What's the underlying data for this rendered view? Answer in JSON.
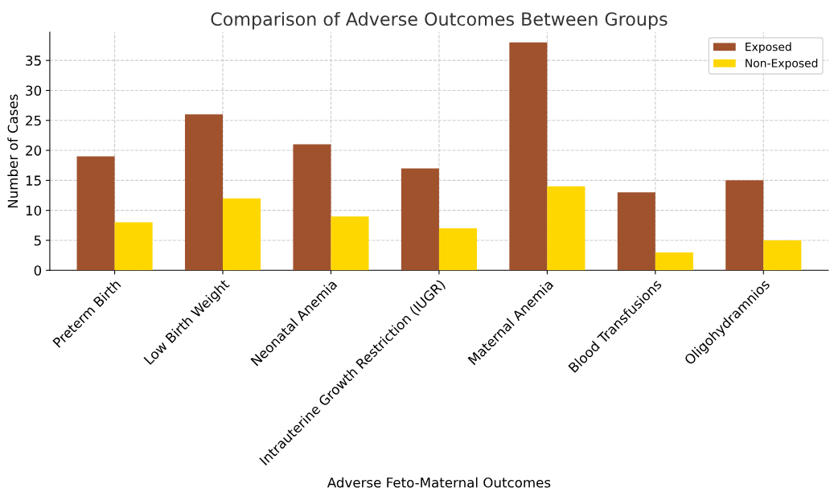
{
  "chart_data": {
    "type": "bar",
    "title": "Comparison of Adverse Outcomes Between Groups",
    "xlabel": "Adverse Feto-Maternal Outcomes",
    "ylabel": "Number of Cases",
    "categories": [
      "Preterm Birth",
      "Low Birth Weight",
      "Neonatal Anemia",
      "Intrauterine Growth Restriction (IUGR)",
      "Maternal Anemia",
      "Blood Transfusions",
      "Oligohydramnios"
    ],
    "series": [
      {
        "name": "Exposed",
        "color": "#a0522d",
        "values": [
          19,
          26,
          21,
          17,
          38,
          13,
          15
        ]
      },
      {
        "name": "Non-Exposed",
        "color": "#ffd700",
        "values": [
          8,
          12,
          9,
          7,
          14,
          3,
          5
        ]
      }
    ],
    "ylim": [
      0,
      39.7
    ],
    "yticks": [
      0,
      5,
      10,
      15,
      20,
      25,
      30,
      35
    ],
    "grid": true,
    "legend": "top right"
  }
}
